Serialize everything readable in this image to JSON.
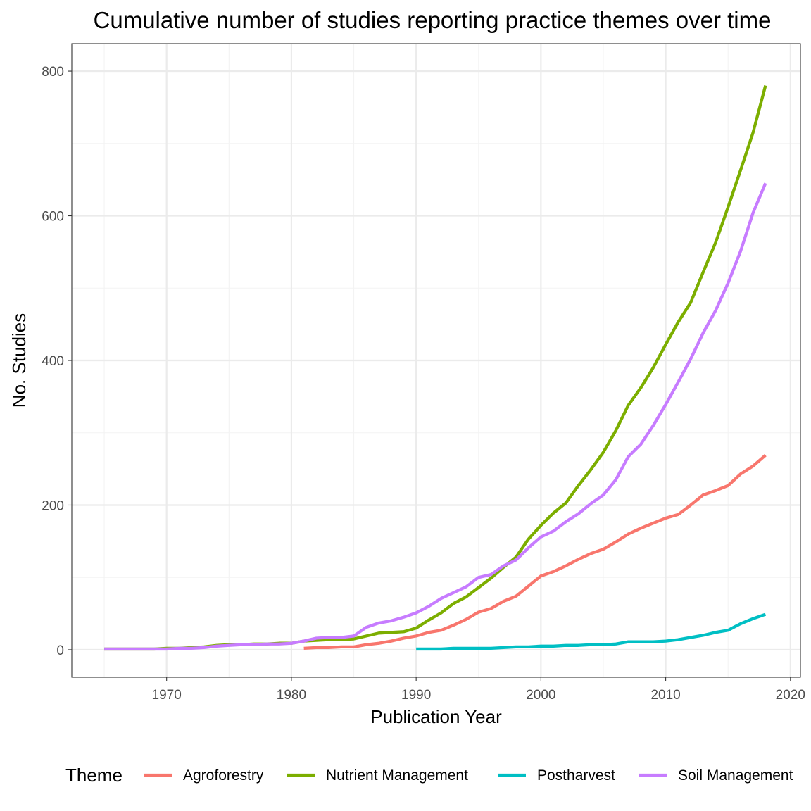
{
  "chart_data": {
    "type": "line",
    "title": "Cumulative number of studies reporting practice themes over time",
    "xlabel": "Publication Year",
    "ylabel": "No. Studies",
    "xlim": [
      1962.4,
      2020.8
    ],
    "ylim": [
      -38,
      838
    ],
    "x_ticks": [
      1970,
      1980,
      1990,
      2000,
      2010,
      2020
    ],
    "y_ticks": [
      0,
      200,
      400,
      600,
      800
    ],
    "grid": true,
    "legend": {
      "title": "Theme",
      "position": "bottom"
    },
    "series": [
      {
        "name": "Agroforestry",
        "color": "#F8766D",
        "points": [
          [
            1981,
            2
          ],
          [
            1982,
            3
          ],
          [
            1983,
            3
          ],
          [
            1984,
            4
          ],
          [
            1985,
            4
          ],
          [
            1986,
            7
          ],
          [
            1987,
            9
          ],
          [
            1988,
            12
          ],
          [
            1989,
            16
          ],
          [
            1990,
            19
          ],
          [
            1991,
            24
          ],
          [
            1992,
            27
          ],
          [
            1993,
            34
          ],
          [
            1994,
            42
          ],
          [
            1995,
            52
          ],
          [
            1996,
            57
          ],
          [
            1997,
            67
          ],
          [
            1998,
            74
          ],
          [
            1999,
            88
          ],
          [
            2000,
            102
          ],
          [
            2001,
            108
          ],
          [
            2002,
            116
          ],
          [
            2003,
            125
          ],
          [
            2004,
            133
          ],
          [
            2005,
            139
          ],
          [
            2006,
            149
          ],
          [
            2007,
            160
          ],
          [
            2008,
            168
          ],
          [
            2009,
            175
          ],
          [
            2010,
            182
          ],
          [
            2011,
            187
          ],
          [
            2012,
            200
          ],
          [
            2013,
            214
          ],
          [
            2014,
            220
          ],
          [
            2015,
            227
          ],
          [
            2016,
            243
          ],
          [
            2017,
            254
          ],
          [
            2018,
            269
          ]
        ]
      },
      {
        "name": "Nutrient Management",
        "color": "#7CAE00",
        "points": [
          [
            1965,
            1
          ],
          [
            1966,
            1
          ],
          [
            1967,
            1
          ],
          [
            1968,
            1
          ],
          [
            1969,
            1
          ],
          [
            1970,
            2
          ],
          [
            1971,
            2
          ],
          [
            1972,
            3
          ],
          [
            1973,
            4
          ],
          [
            1974,
            6
          ],
          [
            1975,
            7
          ],
          [
            1976,
            7
          ],
          [
            1977,
            8
          ],
          [
            1978,
            8
          ],
          [
            1979,
            9
          ],
          [
            1980,
            9
          ],
          [
            1981,
            12
          ],
          [
            1982,
            13
          ],
          [
            1983,
            14
          ],
          [
            1984,
            14
          ],
          [
            1985,
            15
          ],
          [
            1986,
            19
          ],
          [
            1987,
            23
          ],
          [
            1988,
            24
          ],
          [
            1989,
            25
          ],
          [
            1990,
            30
          ],
          [
            1991,
            41
          ],
          [
            1992,
            51
          ],
          [
            1993,
            64
          ],
          [
            1994,
            73
          ],
          [
            1995,
            86
          ],
          [
            1996,
            99
          ],
          [
            1997,
            114
          ],
          [
            1998,
            128
          ],
          [
            1999,
            153
          ],
          [
            2000,
            172
          ],
          [
            2001,
            189
          ],
          [
            2002,
            203
          ],
          [
            2003,
            227
          ],
          [
            2004,
            249
          ],
          [
            2005,
            273
          ],
          [
            2006,
            303
          ],
          [
            2007,
            338
          ],
          [
            2008,
            362
          ],
          [
            2009,
            390
          ],
          [
            2010,
            422
          ],
          [
            2011,
            453
          ],
          [
            2012,
            480
          ],
          [
            2013,
            522
          ],
          [
            2014,
            563
          ],
          [
            2015,
            612
          ],
          [
            2016,
            663
          ],
          [
            2017,
            715
          ],
          [
            2018,
            780
          ]
        ]
      },
      {
        "name": "Postharvest",
        "color": "#00BFC4",
        "points": [
          [
            1990,
            1
          ],
          [
            1991,
            1
          ],
          [
            1992,
            1
          ],
          [
            1993,
            2
          ],
          [
            1994,
            2
          ],
          [
            1995,
            2
          ],
          [
            1996,
            2
          ],
          [
            1997,
            3
          ],
          [
            1998,
            4
          ],
          [
            1999,
            4
          ],
          [
            2000,
            5
          ],
          [
            2001,
            5
          ],
          [
            2002,
            6
          ],
          [
            2003,
            6
          ],
          [
            2004,
            7
          ],
          [
            2005,
            7
          ],
          [
            2006,
            8
          ],
          [
            2007,
            11
          ],
          [
            2008,
            11
          ],
          [
            2009,
            11
          ],
          [
            2010,
            12
          ],
          [
            2011,
            14
          ],
          [
            2012,
            17
          ],
          [
            2013,
            20
          ],
          [
            2014,
            24
          ],
          [
            2015,
            27
          ],
          [
            2016,
            36
          ],
          [
            2017,
            43
          ],
          [
            2018,
            49
          ]
        ]
      },
      {
        "name": "Soil Management",
        "color": "#C77CFF",
        "points": [
          [
            1965,
            1
          ],
          [
            1966,
            1
          ],
          [
            1967,
            1
          ],
          [
            1968,
            1
          ],
          [
            1969,
            1
          ],
          [
            1970,
            1
          ],
          [
            1971,
            2
          ],
          [
            1972,
            2
          ],
          [
            1973,
            3
          ],
          [
            1974,
            5
          ],
          [
            1975,
            6
          ],
          [
            1976,
            7
          ],
          [
            1977,
            7
          ],
          [
            1978,
            8
          ],
          [
            1979,
            8
          ],
          [
            1980,
            9
          ],
          [
            1981,
            12
          ],
          [
            1982,
            16
          ],
          [
            1983,
            17
          ],
          [
            1984,
            17
          ],
          [
            1985,
            19
          ],
          [
            1986,
            31
          ],
          [
            1987,
            37
          ],
          [
            1988,
            40
          ],
          [
            1989,
            45
          ],
          [
            1990,
            51
          ],
          [
            1991,
            60
          ],
          [
            1992,
            71
          ],
          [
            1993,
            79
          ],
          [
            1994,
            87
          ],
          [
            1995,
            100
          ],
          [
            1996,
            104
          ],
          [
            1997,
            116
          ],
          [
            1998,
            124
          ],
          [
            1999,
            141
          ],
          [
            2000,
            156
          ],
          [
            2001,
            164
          ],
          [
            2002,
            177
          ],
          [
            2003,
            188
          ],
          [
            2004,
            202
          ],
          [
            2005,
            214
          ],
          [
            2006,
            235
          ],
          [
            2007,
            267
          ],
          [
            2008,
            284
          ],
          [
            2009,
            310
          ],
          [
            2010,
            339
          ],
          [
            2011,
            370
          ],
          [
            2012,
            402
          ],
          [
            2013,
            438
          ],
          [
            2014,
            469
          ],
          [
            2015,
            507
          ],
          [
            2016,
            551
          ],
          [
            2017,
            604
          ],
          [
            2018,
            645
          ]
        ]
      }
    ]
  }
}
